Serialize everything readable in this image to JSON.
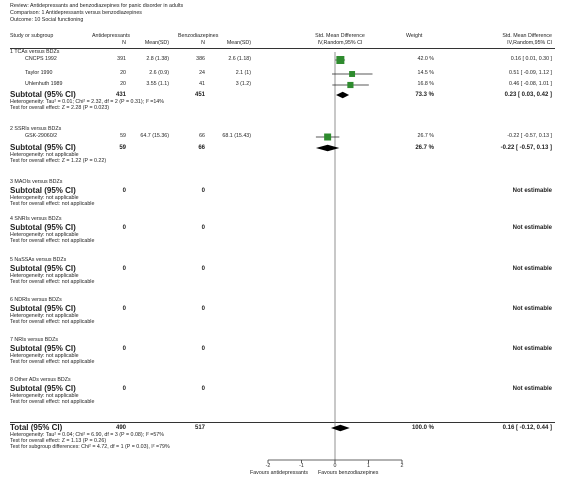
{
  "header": {
    "review": "Review:  Antidepressants and benzodiazepines for panic disorder in adults",
    "comparison": "Comparison:  1 Antidepressants versus benzodiazepines",
    "outcome": "Outcome:  10 Social functioning"
  },
  "columns": {
    "study": "Study or subgroup",
    "exp": "Antidepressants",
    "ctrl": "Benzodiazepines",
    "n": "N",
    "mean": "Mean(SD)",
    "effect_title": "Std. Mean Difference",
    "effect_sub": "IV,Random,95% CI",
    "weight": "Weight",
    "md_title": "Std. Mean Difference",
    "md_sub": "IV,Random,95% CI"
  },
  "groups": [
    {
      "title": "1 TCAs versus BDZs",
      "studies": [
        {
          "name": "CNCPS 1992",
          "n1": "391",
          "m1": "2.8 (1.38)",
          "n2": "386",
          "m2": "2.6 (1.18)",
          "weight": "42.0 %",
          "ci": "0.16 [ 0.01, 0.30 ]"
        },
        {
          "name": "Taylor 1990",
          "n1": "20",
          "m1": "2.6 (0.9)",
          "n2": "24",
          "m2": "2.1 (1)",
          "weight": "14.5 %",
          "ci": "0.51 [ -0.09, 1.12 ]"
        },
        {
          "name": "Uhlenhuth 1989",
          "n1": "20",
          "m1": "3.55 (1.1)",
          "n2": "41",
          "m2": "3 (1.2)",
          "weight": "16.8 %",
          "ci": "0.46 [ -0.08, 1.01 ]"
        }
      ],
      "subtotal": {
        "label": "Subtotal (95% CI)",
        "n1": "431",
        "n2": "451",
        "weight": "73.3 %",
        "ci": "0.23 [ 0.03, 0.42 ]"
      },
      "het1": "Heterogeneity: Tau² = 0.01; Chi² = 2.32, df = 2 (P = 0.31); I² =14%",
      "het2": "Test for overall effect: Z = 2.28 (P = 0.023)"
    },
    {
      "title": "2 SSRIs versus BDZs",
      "studies": [
        {
          "name": "GSK-29060/2",
          "n1": "59",
          "m1": "64.7 (15.36)",
          "n2": "66",
          "m2": "68.1 (15.43)",
          "weight": "26.7 %",
          "ci": "-0.22 [ -0.57, 0.13 ]"
        }
      ],
      "subtotal": {
        "label": "Subtotal (95% CI)",
        "n1": "59",
        "n2": "66",
        "weight": "26.7 %",
        "ci": "-0.22 [ -0.57, 0.13 ]"
      },
      "het1": "Heterogeneity: not applicable",
      "het2": "Test for overall effect: Z = 1.22 (P = 0.22)"
    },
    {
      "title": "3 MAOIs versus BDZs",
      "studies": [],
      "subtotal": {
        "label": "Subtotal (95% CI)",
        "n1": "0",
        "n2": "0",
        "weight": "",
        "ci": "Not estimable"
      },
      "het1": "Heterogeneity: not applicable",
      "het2": "Test for overall effect: not applicable"
    },
    {
      "title": "4 SNRIs versus BDZs",
      "studies": [],
      "subtotal": {
        "label": "Subtotal (95% CI)",
        "n1": "0",
        "n2": "0",
        "weight": "",
        "ci": "Not estimable"
      },
      "het1": "Heterogeneity: not applicable",
      "het2": "Test for overall effect: not applicable"
    },
    {
      "title": "5 NaSSAs versus BDZs",
      "studies": [],
      "subtotal": {
        "label": "Subtotal (95% CI)",
        "n1": "0",
        "n2": "0",
        "weight": "",
        "ci": "Not estimable"
      },
      "het1": "Heterogeneity: not applicable",
      "het2": "Test for overall effect: not applicable"
    },
    {
      "title": "6 NDRIs versus BDZs",
      "studies": [],
      "subtotal": {
        "label": "Subtotal (95% CI)",
        "n1": "0",
        "n2": "0",
        "weight": "",
        "ci": "Not estimable"
      },
      "het1": "Heterogeneity: not applicable",
      "het2": "Test for overall effect: not applicable"
    },
    {
      "title": "7 NRIs versus BDZs",
      "studies": [],
      "subtotal": {
        "label": "Subtotal (95% CI)",
        "n1": "0",
        "n2": "0",
        "weight": "",
        "ci": "Not estimable"
      },
      "het1": "Heterogeneity: not applicable",
      "het2": "Test for overall effect: not applicable"
    },
    {
      "title": "8 Other ADs versus BDZs",
      "studies": [],
      "subtotal": {
        "label": "Subtotal (95% CI)",
        "n1": "0",
        "n2": "0",
        "weight": "",
        "ci": "Not estimable"
      },
      "het1": "Heterogeneity: not applicable",
      "het2": "Test for overall effect: not applicable"
    }
  ],
  "total": {
    "label": "Total (95% CI)",
    "n1": "490",
    "n2": "517",
    "weight": "100.0 %",
    "ci": "0.16 [ -0.12, 0.44 ]",
    "het1": "Heterogeneity: Tau² = 0.04; Chi² = 6.90, df = 3 (P = 0.08); I² =57%",
    "het2": "Test for overall effect: Z = 1.13 (P = 0.26)",
    "het3": "Test for subgroup differences: Chi² = 4.72, df = 1 (P = 0.03), I² =79%"
  },
  "axis": {
    "ticks": [
      "-2",
      "-1",
      "0",
      "1",
      "2"
    ],
    "favours_left": "Favours antidepressants",
    "favours_right": "Favours benzodiazepines"
  },
  "chart_data": {
    "type": "forest",
    "xlim": [
      -2,
      2
    ],
    "colors": {
      "study": "#2e8b2e",
      "diamond": "#000000"
    },
    "studies": [
      {
        "name": "CNCPS 1992",
        "est": 0.16,
        "lo": 0.01,
        "hi": 0.3,
        "weight": 42.0
      },
      {
        "name": "Taylor 1990",
        "est": 0.51,
        "lo": -0.09,
        "hi": 1.12,
        "weight": 14.5
      },
      {
        "name": "Uhlenhuth 1989",
        "est": 0.46,
        "lo": -0.08,
        "hi": 1.01,
        "weight": 16.8
      },
      {
        "name": "GSK-29060/2",
        "est": -0.22,
        "lo": -0.57,
        "hi": 0.13,
        "weight": 26.7
      }
    ],
    "subtotals": [
      {
        "group": "1 TCAs versus BDZs",
        "est": 0.23,
        "lo": 0.03,
        "hi": 0.42
      },
      {
        "group": "2 SSRIs versus BDZs",
        "est": -0.22,
        "lo": -0.57,
        "hi": 0.13
      }
    ],
    "total": {
      "est": 0.16,
      "lo": -0.12,
      "hi": 0.44
    }
  }
}
